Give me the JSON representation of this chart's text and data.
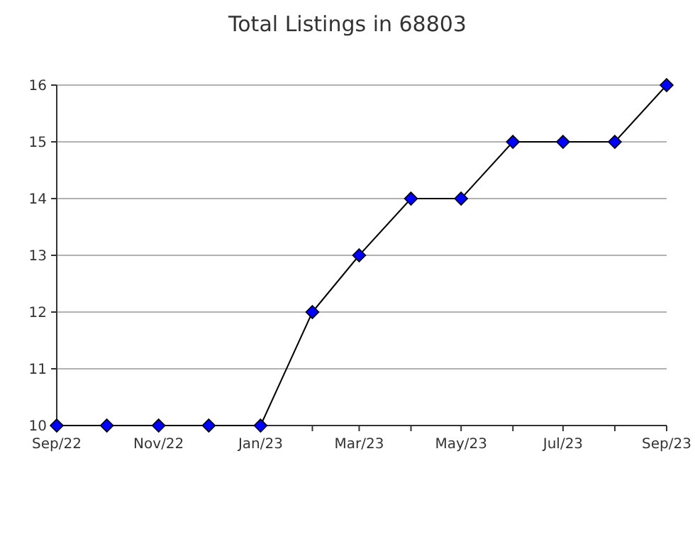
{
  "chart_data": {
    "type": "line",
    "title": "Total Listings in 68803",
    "x": [
      "2022-09",
      "2022-10",
      "2022-11",
      "2022-12",
      "2023-01",
      "2023-02",
      "2023-03",
      "2023-04",
      "2023-05",
      "2023-06",
      "2023-07",
      "2023-08",
      "2023-09"
    ],
    "series": [
      {
        "color": "#0000ff",
        "values": [
          10,
          10,
          10,
          10,
          10,
          12,
          13,
          14,
          14,
          15,
          15,
          15,
          16
        ]
      }
    ],
    "xlim": [
      "2022-09",
      "2023-09"
    ],
    "xticks": [
      {
        "value": "2022-09",
        "label": "Sep/22"
      },
      {
        "value": "2022-10",
        "label": null
      },
      {
        "value": "2022-11",
        "label": "Nov/22"
      },
      {
        "value": "2022-12",
        "label": null
      },
      {
        "value": "2023-01",
        "label": "Jan/23"
      },
      {
        "value": "2023-02",
        "label": null
      },
      {
        "value": "2023-03",
        "label": "Mar/23"
      },
      {
        "value": "2023-04",
        "label": null
      },
      {
        "value": "2023-05",
        "label": "May/23"
      },
      {
        "value": "2023-06",
        "label": null
      },
      {
        "value": "2023-07",
        "label": "Jul/23"
      },
      {
        "value": "2023-08",
        "label": null
      },
      {
        "value": "2023-09",
        "label": "Sep/23"
      }
    ],
    "ylim": [
      10,
      16
    ],
    "yticks": [
      10,
      11,
      12,
      13,
      14,
      15,
      16
    ],
    "grid": "y",
    "marker": "diamond",
    "line_style": "solid"
  }
}
